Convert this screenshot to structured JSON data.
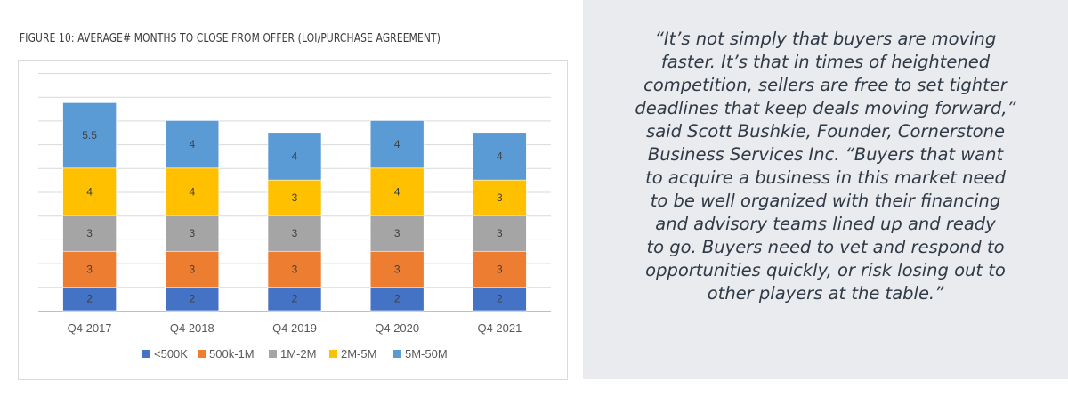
{
  "chart_data": {
    "type": "bar",
    "stacked": true,
    "title": "FIGURE 10:  AVERAGE# MONTHS TO CLOSE FROM OFFER (LOI/PURCHASE AGREEMENT)",
    "categories": [
      "Q4 2017",
      "Q4 2018",
      "Q4 2019",
      "Q4 2020",
      "Q4 2021"
    ],
    "series": [
      {
        "name": "<500K",
        "color": "#4472c4",
        "values": [
          2,
          2,
          2,
          2,
          2
        ],
        "labels": [
          "2",
          "2",
          "2",
          "2",
          "2"
        ]
      },
      {
        "name": "500k-1M",
        "color": "#ed7d31",
        "values": [
          3,
          3,
          3,
          3,
          3
        ],
        "labels": [
          "3",
          "3",
          "3",
          "3",
          "3"
        ]
      },
      {
        "name": "1M-2M",
        "color": "#a5a5a5",
        "values": [
          3,
          3,
          3,
          3,
          3
        ],
        "labels": [
          "3",
          "3",
          "3",
          "3",
          "3"
        ]
      },
      {
        "name": "2M-5M",
        "color": "#ffc000",
        "values": [
          4,
          4,
          3,
          4,
          3
        ],
        "labels": [
          "4",
          "4",
          "3",
          "4",
          "3"
        ]
      },
      {
        "name": "5M-50M",
        "color": "#5b9bd5",
        "values": [
          5.5,
          4,
          4,
          4,
          4
        ],
        "labels": [
          "5.5",
          "4",
          "4",
          "4",
          "4"
        ]
      }
    ],
    "ylim": [
      0,
      20
    ],
    "grid": true,
    "legend": "bottom",
    "xlabel": "",
    "ylabel": ""
  },
  "quote": {
    "lines": [
      "“It’s not simply that buyers are moving",
      "faster. It’s that in times of heightened",
      "competition, sellers are free to set tighter",
      "deadlines that keep deals moving forward,”",
      "said Scott Bushkie, Founder, Cornerstone",
      "Business Services Inc. “Buyers that want",
      "to acquire a business in this market need",
      "to be well organized with their financing",
      "and advisory teams lined up and ready",
      "to go. Buyers need to vet and respond to",
      "opportunities quickly, or risk losing out to",
      "other players at the table.”"
    ]
  }
}
